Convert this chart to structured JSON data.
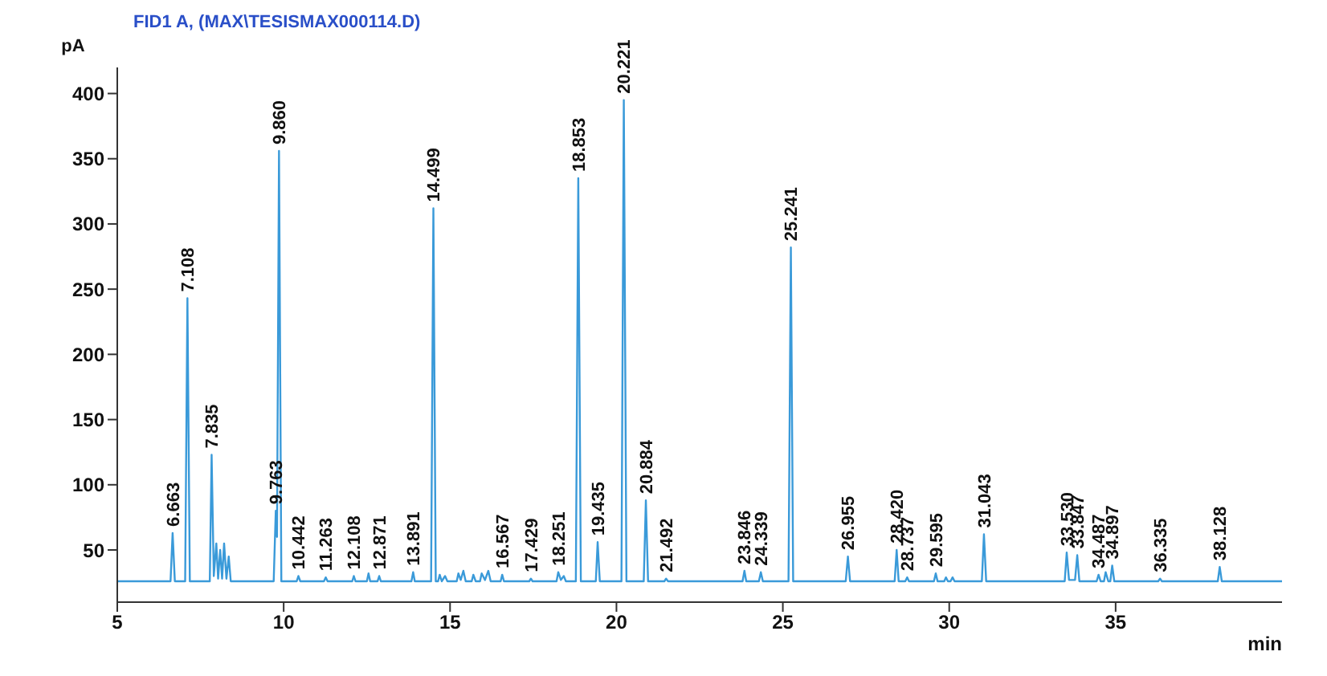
{
  "chart_data": {
    "type": "line",
    "title": "FID1 A,  (MAX\\TESISMAX000114.D)",
    "xlabel": "min",
    "ylabel": "pA",
    "xlim": [
      5,
      40
    ],
    "xticks": [
      5,
      10,
      15,
      20,
      25,
      30,
      35
    ],
    "ylim": [
      10,
      420
    ],
    "yticks": [
      50,
      100,
      150,
      200,
      250,
      300,
      350,
      400
    ],
    "series": [
      {
        "color": "#3a9ad9",
        "x": [
          5,
          6.6,
          6.663,
          6.73,
          7.04,
          7.108,
          7.18,
          7.78,
          7.835,
          7.9,
          7.976,
          8.03,
          8.092,
          8.15,
          8.21,
          8.28,
          8.349,
          8.41,
          9.7,
          9.763,
          9.8,
          9.86,
          9.93,
          10.39,
          10.442,
          10.5,
          11.21,
          11.263,
          11.32,
          12.06,
          12.108,
          12.16,
          12.5,
          12.55,
          12.6,
          12.82,
          12.871,
          12.92,
          13.84,
          13.891,
          13.94,
          14.43,
          14.499,
          14.57,
          14.64,
          14.69,
          14.75,
          14.85,
          14.92,
          15.2,
          15.25,
          15.32,
          15.4,
          15.47,
          15.65,
          15.7,
          15.77,
          15.9,
          15.95,
          16.05,
          16.15,
          16.22,
          16.52,
          16.567,
          16.62,
          17.38,
          17.429,
          17.48,
          18.2,
          18.251,
          18.33,
          18.417,
          18.48,
          18.78,
          18.853,
          18.93,
          19.38,
          19.435,
          19.5,
          20.15,
          20.221,
          20.3,
          20.82,
          20.884,
          20.95,
          21.44,
          21.492,
          21.55,
          23.79,
          23.846,
          23.9,
          24.28,
          24.339,
          24.4,
          25.17,
          25.241,
          25.31,
          26.89,
          26.955,
          27.02,
          28.36,
          28.42,
          28.48,
          28.68,
          28.737,
          28.79,
          29.54,
          29.595,
          29.65,
          29.85,
          29.9,
          29.96,
          30.04,
          30.1,
          30.16,
          30.98,
          31.043,
          31.11,
          33.47,
          33.53,
          33.6,
          33.78,
          33.847,
          33.91,
          34.43,
          34.487,
          34.55,
          34.65,
          34.7,
          34.78,
          34.84,
          34.897,
          34.96,
          36.28,
          36.335,
          36.39,
          38.07,
          38.128,
          38.19,
          40
        ],
        "values": [
          26,
          26,
          63,
          26,
          26,
          243,
          26,
          26,
          123,
          30,
          55,
          28,
          50,
          28,
          55,
          28,
          45,
          26,
          26,
          80,
          60,
          356,
          26,
          26,
          30,
          26,
          26,
          29,
          26,
          26,
          30,
          26,
          26,
          32,
          26,
          26,
          30,
          26,
          26,
          33,
          26,
          26,
          312,
          26,
          26,
          31,
          26,
          30,
          26,
          26,
          32,
          27,
          34,
          26,
          26,
          31,
          26,
          26,
          32,
          27,
          34,
          26,
          26,
          31,
          26,
          26,
          28,
          26,
          26,
          33,
          27,
          30,
          26,
          26,
          335,
          26,
          26,
          56,
          26,
          26,
          395,
          26,
          26,
          88,
          26,
          26,
          28,
          26,
          26,
          34,
          26,
          26,
          33,
          26,
          26,
          282,
          26,
          26,
          45,
          26,
          26,
          50,
          26,
          26,
          29,
          26,
          26,
          32,
          26,
          26,
          29,
          26,
          26,
          29,
          26,
          26,
          62,
          26,
          26,
          48,
          27,
          27,
          46,
          26,
          26,
          31,
          26,
          26,
          33,
          26,
          26,
          38,
          26,
          26,
          28,
          26,
          26,
          37,
          26,
          26
        ]
      }
    ],
    "annotations": [
      {
        "text": "6.663",
        "x": 6.663,
        "y": 63
      },
      {
        "text": "7.108",
        "x": 7.108,
        "y": 243
      },
      {
        "text": "7.835",
        "x": 7.835,
        "y": 123
      },
      {
        "text": "9.763",
        "x": 9.763,
        "y": 80
      },
      {
        "text": "9.860",
        "x": 9.86,
        "y": 356
      },
      {
        "text": "10.442",
        "x": 10.442,
        "y": 30
      },
      {
        "text": "11.263",
        "x": 11.263,
        "y": 29
      },
      {
        "text": "12.108",
        "x": 12.108,
        "y": 30
      },
      {
        "text": "12.871",
        "x": 12.871,
        "y": 30
      },
      {
        "text": "13.891",
        "x": 13.891,
        "y": 33
      },
      {
        "text": "14.499",
        "x": 14.499,
        "y": 312
      },
      {
        "text": "16.567",
        "x": 16.567,
        "y": 31
      },
      {
        "text": "17.429",
        "x": 17.429,
        "y": 28
      },
      {
        "text": "18.251",
        "x": 18.251,
        "y": 33
      },
      {
        "text": "18.853",
        "x": 18.853,
        "y": 335
      },
      {
        "text": "19.435",
        "x": 19.435,
        "y": 56
      },
      {
        "text": "20.221",
        "x": 20.221,
        "y": 395
      },
      {
        "text": "20.884",
        "x": 20.884,
        "y": 88
      },
      {
        "text": "21.492",
        "x": 21.492,
        "y": 28
      },
      {
        "text": "23.846",
        "x": 23.846,
        "y": 34
      },
      {
        "text": "24.339",
        "x": 24.339,
        "y": 33
      },
      {
        "text": "25.241",
        "x": 25.241,
        "y": 282
      },
      {
        "text": "26.955",
        "x": 26.955,
        "y": 45
      },
      {
        "text": "28.420",
        "x": 28.42,
        "y": 50
      },
      {
        "text": "28.737",
        "x": 28.737,
        "y": 29
      },
      {
        "text": "29.595",
        "x": 29.595,
        "y": 32
      },
      {
        "text": "31.043",
        "x": 31.043,
        "y": 62
      },
      {
        "text": "33.530",
        "x": 33.53,
        "y": 48
      },
      {
        "text": "33.847",
        "x": 33.847,
        "y": 46
      },
      {
        "text": "34.487",
        "x": 34.487,
        "y": 31
      },
      {
        "text": "34.897",
        "x": 34.897,
        "y": 38
      },
      {
        "text": "36.335",
        "x": 36.335,
        "y": 28
      },
      {
        "text": "38.128",
        "x": 38.128,
        "y": 37
      }
    ]
  }
}
